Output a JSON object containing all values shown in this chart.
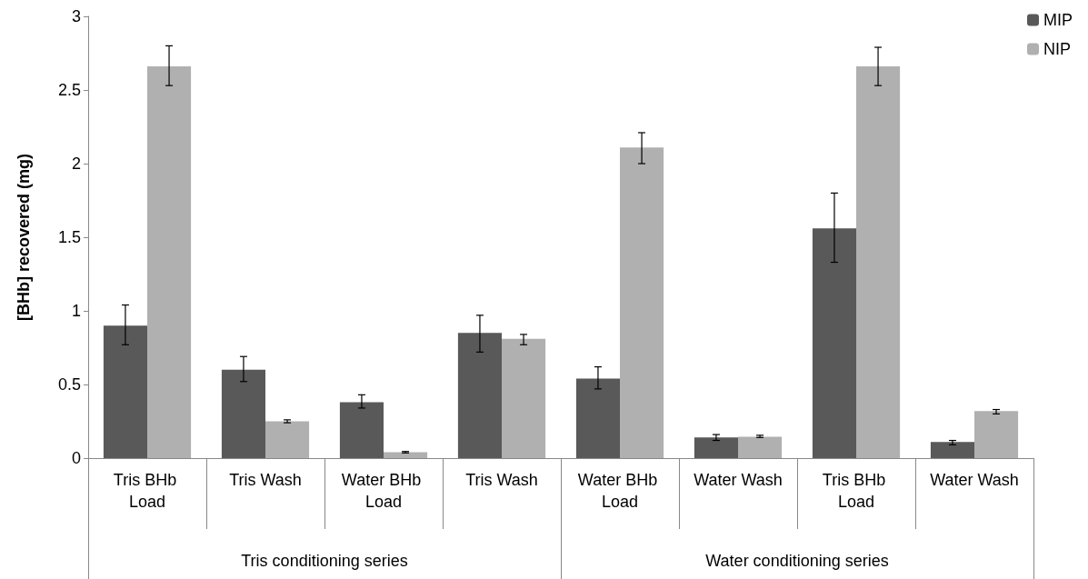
{
  "chart_data": {
    "type": "bar",
    "ylabel": "[BHb] recovered (mg)",
    "categories": [
      "Tris BHb Load",
      "Tris Wash",
      "Water BHb Load",
      "Tris Wash",
      "Water BHb Load",
      "Water Wash",
      "Tris BHb Load",
      "Water Wash"
    ],
    "series": [
      {
        "name": "MIP",
        "color": "#595959",
        "values": [
          0.9,
          0.6,
          0.38,
          0.85,
          0.54,
          0.14,
          1.56,
          0.11
        ],
        "errors": [
          [
            0.77,
            1.04
          ],
          [
            0.52,
            0.69
          ],
          [
            0.34,
            0.43
          ],
          [
            0.72,
            0.97
          ],
          [
            0.47,
            0.62
          ],
          [
            0.12,
            0.16
          ],
          [
            1.33,
            1.8
          ],
          [
            0.09,
            0.12
          ]
        ]
      },
      {
        "name": "NIP",
        "color": "#b0b0b0",
        "values": [
          2.66,
          0.25,
          0.04,
          0.81,
          2.11,
          0.145,
          2.66,
          0.32
        ],
        "errors": [
          [
            2.53,
            2.8
          ],
          [
            0.24,
            0.26
          ],
          [
            0.035,
            0.045
          ],
          [
            0.77,
            0.84
          ],
          [
            2.0,
            2.21
          ],
          [
            0.14,
            0.155
          ],
          [
            2.53,
            2.79
          ],
          [
            0.3,
            0.33
          ]
        ]
      }
    ],
    "annotations": [
      "Tris conditioning series",
      "Water conditioning series"
    ],
    "ylim": [
      0,
      3
    ],
    "yticks": [
      0,
      0.5,
      1,
      1.5,
      2,
      2.5,
      3
    ],
    "grid": false,
    "legend": "top right"
  }
}
